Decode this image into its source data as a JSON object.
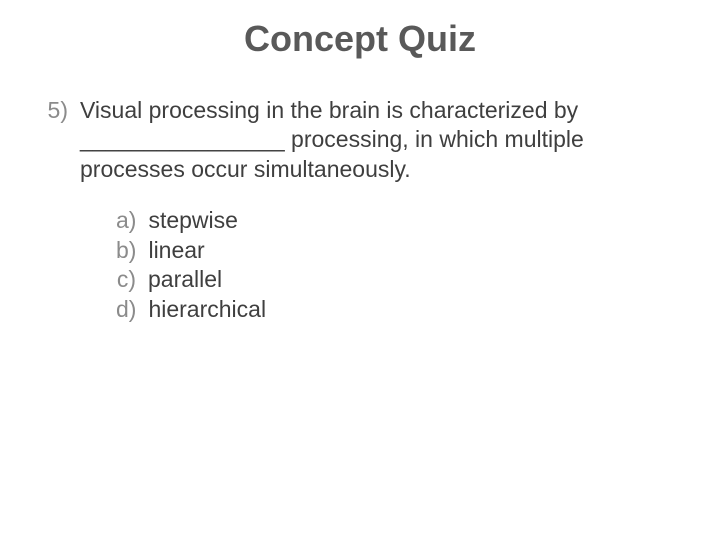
{
  "slide": {
    "title": "Concept Quiz",
    "question": {
      "number": "5)",
      "text": "Visual processing in the brain is characterized by ________________ processing, in which multiple processes occur simultaneously."
    },
    "options": [
      {
        "letter": "a)",
        "text": "stepwise"
      },
      {
        "letter": "b)",
        "text": "linear"
      },
      {
        "letter": "c)",
        "text": "parallel"
      },
      {
        "letter": "d)",
        "text": "hierarchical"
      }
    ],
    "colors": {
      "background": "#ffffff",
      "title_color": "#595959",
      "body_color": "#3f3f3f",
      "number_color": "#8b8b8b"
    },
    "typography": {
      "title_fontsize": 36,
      "body_fontsize": 23,
      "font_family": "Arial"
    }
  }
}
